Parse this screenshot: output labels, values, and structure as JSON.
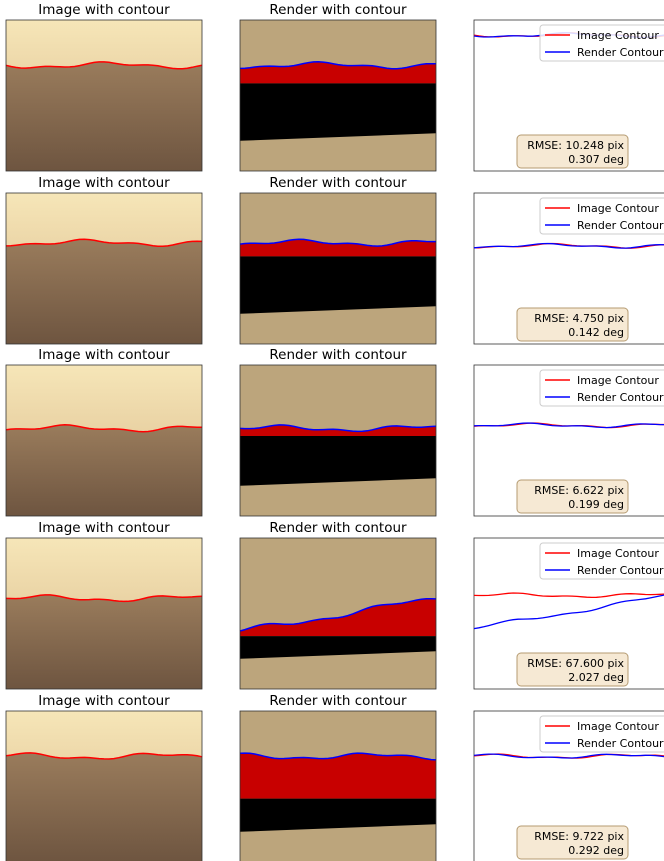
{
  "panels": [
    {
      "image_title": "Image with contour",
      "render_title": "Render with contour",
      "legend": [
        "Image Contour",
        "Render Contour"
      ],
      "rmse": [
        "RMSE: 10.248 pix",
        "0.307 deg"
      ]
    },
    {
      "image_title": "Image with contour",
      "render_title": "Render with contour",
      "legend": [
        "Image Contour",
        "Render Contour"
      ],
      "rmse": [
        "RMSE: 4.750 pix",
        "0.142 deg"
      ]
    },
    {
      "image_title": "Image with contour",
      "render_title": "Render with contour",
      "legend": [
        "Image Contour",
        "Render Contour"
      ],
      "rmse": [
        "RMSE: 6.622 pix",
        "0.199 deg"
      ]
    },
    {
      "image_title": "Image with contour",
      "render_title": "Render with contour",
      "legend": [
        "Image Contour",
        "Render Contour"
      ],
      "rmse": [
        "RMSE: 67.600 pix",
        "2.027 deg"
      ]
    },
    {
      "image_title": "Image with contour",
      "render_title": "Render with contour",
      "legend": [
        "Image Contour",
        "Render Contour"
      ],
      "rmse": [
        "RMSE: 9.722 pix",
        "0.292 deg"
      ]
    }
  ]
}
